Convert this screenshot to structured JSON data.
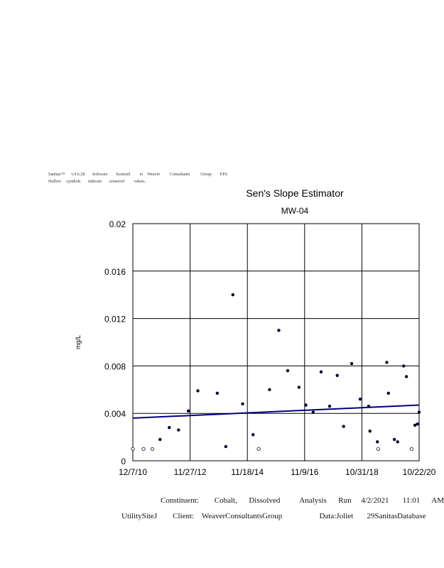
{
  "header": {
    "line1": "Sanitas™      v.9.6.28       Software        licensed         to    Weaver         Consultants          Group.       EPA",
    "line2": "Hollow     symbols       indicate       censored         values."
  },
  "chart_data": {
    "type": "scatter",
    "title": "Sen's Slope Estimator",
    "subtitle": "MW-04",
    "xlabel": "",
    "ylabel": "mg/L",
    "ylim": [
      0,
      0.02
    ],
    "yticks": [
      "0",
      "0.004",
      "0.008",
      "0.012",
      "0.016",
      "0.02"
    ],
    "xticks": [
      "12/7/10",
      "11/27/12",
      "11/18/14",
      "11/9/16",
      "10/31/18",
      "10/22/20"
    ],
    "xrange": [
      "2010-12-07",
      "2020-10-22"
    ],
    "grid": true,
    "marker_color": "#000033",
    "trend_color": "#000080",
    "points": [
      {
        "x": "2010-12-07",
        "y": 0.001,
        "censored": true
      },
      {
        "x": "2011-04-20",
        "y": 0.001,
        "censored": true
      },
      {
        "x": "2011-08-10",
        "y": 0.001,
        "censored": true
      },
      {
        "x": "2011-11-15",
        "y": 0.0018,
        "censored": false
      },
      {
        "x": "2012-03-10",
        "y": 0.0028,
        "censored": false
      },
      {
        "x": "2012-07-05",
        "y": 0.0026,
        "censored": false
      },
      {
        "x": "2012-11-05",
        "y": 0.0042,
        "censored": false
      },
      {
        "x": "2013-03-05",
        "y": 0.0059,
        "censored": false
      },
      {
        "x": "2013-11-05",
        "y": 0.0057,
        "censored": false
      },
      {
        "x": "2014-02-20",
        "y": 0.0012,
        "censored": false
      },
      {
        "x": "2014-05-20",
        "y": 0.014,
        "censored": false
      },
      {
        "x": "2014-09-20",
        "y": 0.0048,
        "censored": false
      },
      {
        "x": "2015-01-30",
        "y": 0.0022,
        "censored": false
      },
      {
        "x": "2015-04-10",
        "y": 0.001,
        "censored": true
      },
      {
        "x": "2015-08-25",
        "y": 0.006,
        "censored": false
      },
      {
        "x": "2015-12-20",
        "y": 0.011,
        "censored": false
      },
      {
        "x": "2016-04-10",
        "y": 0.0076,
        "censored": false
      },
      {
        "x": "2016-08-30",
        "y": 0.0062,
        "censored": false
      },
      {
        "x": "2016-11-25",
        "y": 0.0047,
        "censored": false
      },
      {
        "x": "2017-02-25",
        "y": 0.0041,
        "censored": false
      },
      {
        "x": "2017-06-05",
        "y": 0.0075,
        "censored": false
      },
      {
        "x": "2017-09-20",
        "y": 0.0046,
        "censored": false
      },
      {
        "x": "2017-12-25",
        "y": 0.0072,
        "censored": false
      },
      {
        "x": "2018-03-15",
        "y": 0.0029,
        "censored": false
      },
      {
        "x": "2018-06-25",
        "y": 0.0082,
        "censored": false
      },
      {
        "x": "2018-10-10",
        "y": 0.0052,
        "censored": false
      },
      {
        "x": "2019-02-10",
        "y": 0.0025,
        "censored": false
      },
      {
        "x": "2019-05-15",
        "y": 0.0016,
        "censored": false
      },
      {
        "x": "2019-09-10",
        "y": 0.0083,
        "censored": false
      },
      {
        "x": "2019-12-15",
        "y": 0.0018,
        "censored": false
      },
      {
        "x": "2020-04-10",
        "y": 0.008,
        "censored": false
      },
      {
        "x": "2020-07-20",
        "y": 0.001,
        "censored": true
      }
    ],
    "points_after_2020": [
      {
        "x": "2019-01-25",
        "y": 0.0046,
        "censored": false
      },
      {
        "x": "2019-05-25",
        "y": 0.001,
        "censored": true
      },
      {
        "x": "2019-10-01",
        "y": 0.0057,
        "censored": false
      },
      {
        "x": "2020-01-25",
        "y": 0.0016,
        "censored": false
      },
      {
        "x": "2020-05-15",
        "y": 0.0071,
        "censored": false
      },
      {
        "x": "2020-08-30",
        "y": 0.003,
        "censored": false
      },
      {
        "x": "2020-10-01",
        "y": 0.0031,
        "censored": false
      },
      {
        "x": "2020-10-22",
        "y": 0.0041,
        "censored": false
      }
    ],
    "trend": {
      "start": 0.0036,
      "end": 0.0047
    }
  },
  "footer": {
    "line1": "Constituent:        Cobalt,      Dissolved          Analysis      Run     4/2/2021       11:01      AM",
    "line2": "UtilitySiteJ        Client:    WeaverConsultantsGroup                   Data:Joliet       29SanitasDatabase"
  }
}
